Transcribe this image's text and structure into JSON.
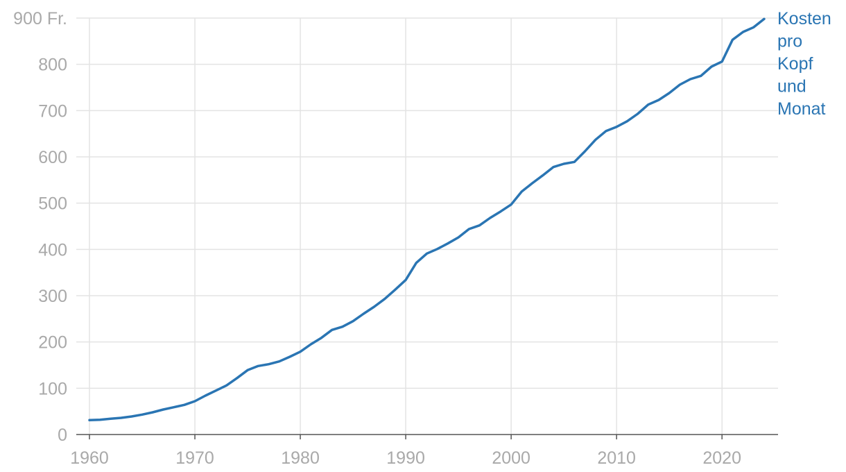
{
  "chart_data": {
    "type": "line",
    "title": "",
    "xlabel": "",
    "ylabel": "",
    "xlim": [
      1960,
      2024
    ],
    "ylim": [
      0,
      900
    ],
    "grid": true,
    "x_ticks": [
      1960,
      1970,
      1980,
      1990,
      2000,
      2010,
      2020
    ],
    "x_tick_labels": [
      "1960",
      "1970",
      "1980",
      "1990",
      "2000",
      "2010",
      "2020"
    ],
    "y_ticks": [
      0,
      100,
      200,
      300,
      400,
      500,
      600,
      700,
      800,
      900
    ],
    "y_tick_labels": [
      "0",
      "100",
      "200",
      "300",
      "400",
      "500",
      "600",
      "700",
      "800",
      "900 Fr."
    ],
    "series": [
      {
        "name": "Kosten pro Kopf und Monat",
        "label_lines": [
          "Kosten",
          "pro",
          "Kopf",
          "und",
          "Monat"
        ],
        "color": "#2a75b3",
        "x": [
          1960,
          1961,
          1962,
          1963,
          1964,
          1965,
          1966,
          1967,
          1968,
          1969,
          1970,
          1971,
          1972,
          1973,
          1974,
          1975,
          1976,
          1977,
          1978,
          1979,
          1980,
          1981,
          1982,
          1983,
          1984,
          1985,
          1986,
          1987,
          1988,
          1989,
          1990,
          1991,
          1992,
          1993,
          1994,
          1995,
          1996,
          1997,
          1998,
          1999,
          2000,
          2001,
          2002,
          2003,
          2004,
          2005,
          2006,
          2007,
          2008,
          2009,
          2010,
          2011,
          2012,
          2013,
          2014,
          2015,
          2016,
          2017,
          2018,
          2019,
          2020,
          2021,
          2022,
          2023,
          2024
        ],
        "values": [
          31,
          32,
          34,
          36,
          39,
          43,
          48,
          54,
          59,
          64,
          72,
          84,
          95,
          106,
          122,
          139,
          148,
          152,
          158,
          168,
          179,
          195,
          209,
          226,
          233,
          245,
          261,
          276,
          293,
          313,
          334,
          371,
          391,
          401,
          413,
          426,
          444,
          452,
          468,
          482,
          497,
          525,
          543,
          560,
          578,
          585,
          589,
          612,
          637,
          656,
          665,
          677,
          693,
          713,
          723,
          738,
          756,
          768,
          775,
          795,
          806,
          853,
          870,
          880,
          898
        ]
      }
    ]
  }
}
